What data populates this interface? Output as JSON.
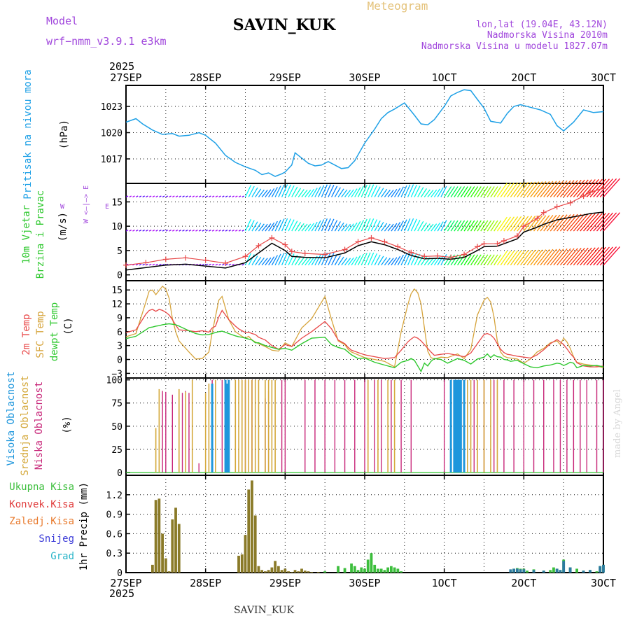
{
  "header": {
    "station": "SAVIN_KUK",
    "model_label": "Model",
    "model_name": "wrf−nmm_v3.9.1 e3km",
    "subtitle": "Meteogram",
    "coords": "lon,lat (19.04E, 43.12N)",
    "elevation": "Nadmorska Visina 2010m",
    "model_elevation": "Nadmorska Visina u modelu 1827.07m",
    "year": "2025",
    "footer_station": "SAVIN_KUK",
    "watermark": "made by Angel"
  },
  "colors": {
    "pressure": "#1ea0e6",
    "temp2m": "#e84848",
    "tsfc": "#d6a43c",
    "dewpt": "#2ec82e",
    "cloud_high": "#1e96dc",
    "cloud_mid": "#d4a83a",
    "cloud_low": "#c8287a",
    "precip_total": "#3cbe3c",
    "precip_conv": "#e03c3c",
    "precip_frz": "#e8782a",
    "precip_snow": "#3c3cd8",
    "precip_grad": "#28b4c8",
    "gust": "#e84848",
    "label_purple": "#a046dc",
    "label_green": "#2ec82e",
    "label_gold": "#d6a43c"
  },
  "chart_data": [
    {
      "type": "line",
      "name": "pressure",
      "title": "Pritisak na nivou mora",
      "ylabel": "(hPa)",
      "xlim": [
        0,
        144
      ],
      "ylim": [
        1014.2,
        1025.4
      ],
      "yticks": [
        1017,
        1020,
        1023
      ],
      "x_ticks": [
        0,
        24,
        48,
        72,
        96,
        120,
        144
      ],
      "x_tick_labels": [
        "27SEP",
        "28SEP",
        "29SEP",
        "30SEP",
        "1OCT",
        "2OCT",
        "3OCT"
      ],
      "x": [
        0,
        3,
        5,
        8,
        11,
        14,
        16,
        19,
        22,
        24,
        27,
        30,
        33,
        36,
        39,
        41,
        43,
        45,
        47,
        48,
        50,
        51,
        53,
        55,
        57,
        59,
        61,
        63,
        65,
        67,
        69,
        72,
        75,
        77,
        79,
        81,
        84,
        87,
        89,
        91,
        93,
        96,
        98,
        100,
        102,
        104,
        106,
        108,
        110,
        113,
        115,
        117,
        119,
        122,
        125,
        128,
        130,
        132,
        135,
        138,
        141,
        144
      ],
      "values": [
        1021.2,
        1021.6,
        1021.0,
        1020.3,
        1019.8,
        1019.9,
        1019.6,
        1019.7,
        1020.0,
        1019.7,
        1018.8,
        1017.4,
        1016.6,
        1016.1,
        1015.7,
        1015.2,
        1015.4,
        1015.0,
        1015.3,
        1015.5,
        1016.3,
        1017.7,
        1017.1,
        1016.5,
        1016.2,
        1016.3,
        1016.7,
        1016.3,
        1015.9,
        1016.0,
        1016.8,
        1018.8,
        1020.4,
        1021.6,
        1022.3,
        1022.7,
        1023.4,
        1022.0,
        1021.0,
        1020.9,
        1021.5,
        1023.0,
        1024.2,
        1024.6,
        1024.9,
        1024.8,
        1023.8,
        1022.8,
        1021.3,
        1021.1,
        1022.2,
        1023.0,
        1023.2,
        1022.9,
        1022.6,
        1022.1,
        1020.8,
        1020.2,
        1021.2,
        1022.6,
        1022.3,
        1022.4
      ]
    },
    {
      "type": "line",
      "name": "wind",
      "title_line1": "10m Vjetar",
      "title_line2": "Brzina i Pravac",
      "ylabel": "(m/s)",
      "compass_legend": "W <—|—> E",
      "compass_vertical": "N",
      "compass_vertical2": "S",
      "ylim": [
        -1.2,
        18.8
      ],
      "yticks": [
        0,
        5,
        10,
        15
      ],
      "x": [
        0,
        6,
        12,
        18,
        24,
        30,
        36,
        40,
        44,
        48,
        50,
        54,
        60,
        66,
        70,
        74,
        78,
        82,
        86,
        90,
        94,
        98,
        102,
        106,
        108,
        112,
        114,
        118,
        120,
        124,
        126,
        130,
        134,
        138,
        140,
        144
      ],
      "speed": [
        1.0,
        1.5,
        2.0,
        2.2,
        1.8,
        1.4,
        2.5,
        4.5,
        6.5,
        5.0,
        3.8,
        3.6,
        3.5,
        4.5,
        6.0,
        6.8,
        6.2,
        5.2,
        4.0,
        3.3,
        3.4,
        3.2,
        3.6,
        5.0,
        5.8,
        5.9,
        6.4,
        7.4,
        8.8,
        9.8,
        10.4,
        11.3,
        11.8,
        12.3,
        12.6,
        12.9
      ],
      "gust": [
        2.0,
        2.5,
        3.2,
        3.5,
        3.0,
        2.4,
        3.8,
        6.0,
        7.6,
        6.2,
        4.8,
        4.4,
        4.2,
        5.2,
        6.8,
        7.6,
        6.8,
        5.8,
        4.6,
        3.8,
        3.9,
        3.6,
        4.2,
        5.8,
        6.4,
        6.4,
        7.0,
        8.0,
        10.0,
        11.6,
        12.8,
        14.0,
        14.8,
        16.2,
        17.0,
        17.8
      ],
      "barb_rows_ms": [
        2,
        9,
        16
      ]
    },
    {
      "type": "line",
      "name": "temperature",
      "ylabel": "(C)",
      "label_2m": "2m Temp",
      "label_sfc": "SFC Temp",
      "label_dew": "dewpt Temp",
      "ylim": [
        -4,
        17
      ],
      "yticks": [
        -3,
        0,
        3,
        6,
        9,
        12,
        15
      ],
      "x": [
        0,
        3,
        6,
        7,
        8,
        9,
        10,
        11,
        12,
        13,
        14,
        15,
        16,
        19,
        21,
        23,
        25,
        26,
        27,
        28,
        29,
        31,
        33,
        34,
        35,
        36,
        37,
        38,
        39,
        40,
        42,
        44,
        46,
        48,
        50,
        53,
        56,
        60,
        62,
        64,
        66,
        67,
        68,
        70,
        72,
        75,
        78,
        81,
        83,
        85,
        86,
        87,
        88,
        89,
        90,
        91,
        92,
        93,
        95,
        97,
        100,
        102,
        104,
        106,
        108,
        109,
        110,
        111,
        112,
        113,
        114,
        115,
        116,
        118,
        120,
        122,
        124,
        126,
        128,
        130,
        131,
        132,
        133,
        134,
        135,
        136,
        138,
        140,
        142,
        144
      ],
      "t2m": [
        5.8,
        6.4,
        9.8,
        10.6,
        10.8,
        10.4,
        10.8,
        10.6,
        10.2,
        9.6,
        8.6,
        7.4,
        6.4,
        6.2,
        6.0,
        6.2,
        5.9,
        6.8,
        7.2,
        9.2,
        10.6,
        8.6,
        7.2,
        6.6,
        6.2,
        5.8,
        5.9,
        5.6,
        5.4,
        4.8,
        4.2,
        3.0,
        2.2,
        3.2,
        2.8,
        4.6,
        6.0,
        8.2,
        6.6,
        4.2,
        3.4,
        2.6,
        2.0,
        1.5,
        1.0,
        0.6,
        0.2,
        0.4,
        2.0,
        3.8,
        4.4,
        4.9,
        4.6,
        4.0,
        3.2,
        2.4,
        1.6,
        0.9,
        1.1,
        1.3,
        0.9,
        0.6,
        1.4,
        3.4,
        5.4,
        5.6,
        5.3,
        4.6,
        3.4,
        2.2,
        1.5,
        1.1,
        1.0,
        0.7,
        0.5,
        0.3,
        1.0,
        2.1,
        3.4,
        4.3,
        3.8,
        3.2,
        2.3,
        1.3,
        0.5,
        -0.7,
        -1.4,
        -1.6,
        -1.6,
        -1.4
      ],
      "tsfc": [
        4.9,
        5.6,
        12.4,
        14.8,
        15.0,
        14.0,
        14.9,
        15.8,
        15.2,
        13.2,
        8.8,
        6.0,
        4.0,
        1.6,
        0.1,
        0.2,
        1.6,
        5.8,
        9.3,
        12.8,
        13.6,
        8.6,
        6.0,
        5.5,
        5.0,
        4.6,
        5.0,
        4.2,
        3.8,
        3.4,
        2.8,
        2.0,
        1.8,
        3.6,
        2.8,
        6.8,
        8.8,
        13.6,
        8.6,
        4.0,
        3.2,
        2.2,
        1.6,
        1.0,
        0.4,
        0.0,
        -0.4,
        -1.6,
        6.0,
        11.8,
        14.2,
        15.2,
        14.4,
        12.0,
        6.8,
        1.8,
        0.4,
        0.1,
        0.5,
        0.4,
        1.2,
        0.2,
        2.2,
        9.6,
        12.8,
        13.4,
        12.4,
        9.2,
        4.0,
        1.6,
        0.7,
        0.4,
        0.3,
        0.1,
        -0.8,
        0.1,
        1.6,
        2.4,
        3.6,
        4.0,
        3.2,
        4.6,
        3.8,
        2.4,
        0.6,
        -0.6,
        -1.0,
        -1.2,
        -1.4,
        -1.8
      ],
      "dewpt": [
        4.5,
        5.0,
        6.4,
        6.9,
        7.0,
        7.2,
        7.3,
        7.5,
        7.6,
        7.7,
        7.6,
        7.5,
        7.2,
        6.2,
        5.6,
        5.3,
        5.4,
        5.6,
        5.8,
        6.0,
        6.1,
        5.6,
        5.1,
        4.9,
        4.8,
        4.6,
        4.4,
        4.2,
        3.6,
        3.6,
        3.0,
        2.6,
        2.2,
        2.4,
        2.0,
        3.4,
        4.6,
        4.8,
        3.2,
        2.6,
        2.2,
        1.6,
        1.0,
        0.2,
        0.3,
        -0.6,
        -1.2,
        -1.8,
        -0.6,
        -0.2,
        0.2,
        -0.2,
        -1.4,
        -2.6,
        -0.8,
        -1.4,
        -0.4,
        0.2,
        0.0,
        -0.8,
        0.2,
        -0.2,
        -1.0,
        0.1,
        0.5,
        1.2,
        0.4,
        1.0,
        0.6,
        0.5,
        0.0,
        -0.1,
        -0.4,
        -0.2,
        -0.9,
        -1.6,
        -1.8,
        -1.4,
        -1.2,
        -0.8,
        -0.9,
        -1.3,
        -1.0,
        -0.6,
        -0.8,
        -1.8,
        -1.3,
        -1.4,
        -1.3,
        -1.6
      ]
    },
    {
      "type": "bar",
      "name": "clouds",
      "label_high": "Visoka Oblacnost",
      "label_mid": "Srednja Oblacnost",
      "label_low": "Niska Oblacnost",
      "ylabel": "(%)",
      "ylim": [
        -3,
        102
      ],
      "yticks": [
        0,
        25,
        50,
        75,
        100
      ],
      "low_x": [
        11,
        12,
        14,
        16,
        17,
        18,
        19,
        22,
        26,
        29,
        30,
        33,
        35,
        36,
        37,
        38,
        39,
        42,
        43,
        47,
        48,
        54,
        57,
        60,
        63,
        66,
        69,
        72,
        75,
        77,
        80,
        83,
        86,
        96,
        99,
        102,
        105,
        108,
        111,
        114,
        117,
        120,
        123,
        126,
        129,
        131,
        133,
        135,
        137,
        139,
        142,
        144
      ],
      "low_v": [
        88,
        87,
        84,
        88,
        86,
        88,
        86,
        10,
        100,
        100,
        100,
        100,
        100,
        100,
        100,
        100,
        100,
        80,
        88,
        100,
        100,
        100,
        100,
        100,
        100,
        100,
        100,
        100,
        100,
        100,
        100,
        100,
        100,
        100,
        100,
        100,
        100,
        100,
        100,
        100,
        100,
        100,
        100,
        100,
        100,
        100,
        100,
        100,
        100,
        100,
        100,
        100
      ],
      "mid_x": [
        9,
        10,
        16,
        18,
        20,
        24,
        25,
        27,
        33,
        34,
        35,
        36,
        37,
        38,
        39,
        40,
        42,
        43,
        44,
        45,
        73,
        76,
        79,
        81,
        103,
        104,
        106,
        108,
        110,
        112
      ],
      "mid_v": [
        48,
        90,
        90,
        87,
        100,
        86,
        96,
        100,
        100,
        100,
        100,
        100,
        100,
        100,
        100,
        100,
        100,
        100,
        100,
        100,
        100,
        100,
        100,
        100,
        100,
        100,
        100,
        100,
        100,
        100
      ],
      "high_x": [
        26,
        30,
        30.5,
        31,
        98,
        99,
        99.5,
        100,
        100.5,
        101,
        102
      ],
      "high_v": [
        96,
        100,
        96,
        100,
        100,
        100,
        100,
        100,
        100,
        100,
        100
      ]
    },
    {
      "type": "bar",
      "name": "precip",
      "label_total": "Ukupna Kisa",
      "label_conv": "Konvek.Kisa",
      "label_frz": "Zaledj.Kisa",
      "label_snow": "Snijeg",
      "label_grad": "Grad",
      "ylabel": "1hr Precip (mm)",
      "ylim": [
        0,
        1.5
      ],
      "yticks": [
        0,
        0.3,
        0.6,
        0.9,
        1.2
      ],
      "x": [
        8,
        9,
        10,
        11,
        12,
        13,
        14,
        15,
        16,
        34,
        35,
        36,
        37,
        38,
        39,
        40,
        41,
        42,
        43,
        44,
        45,
        46,
        47,
        48,
        49,
        50,
        51,
        52,
        53,
        54,
        55,
        56,
        58,
        60,
        64,
        66,
        68,
        69,
        70,
        71,
        72,
        73,
        74,
        75,
        76,
        77,
        78,
        79,
        80,
        81,
        82,
        83,
        116,
        117,
        118,
        119,
        120,
        121,
        123,
        126,
        128,
        129,
        130,
        131,
        132,
        134,
        136,
        138,
        140,
        142,
        143,
        144
      ],
      "values": [
        0.12,
        1.12,
        1.14,
        0.6,
        0.22,
        0.02,
        0.82,
        1.0,
        0.75,
        0.26,
        0.28,
        0.58,
        1.28,
        1.42,
        0.88,
        0.1,
        0.04,
        0.02,
        0.04,
        0.08,
        0.18,
        0.1,
        0.04,
        0.06,
        0.02,
        0.01,
        0.04,
        0.02,
        0.06,
        0.03,
        0.02,
        0.01,
        0.01,
        0.02,
        0.1,
        0.07,
        0.14,
        0.1,
        0.04,
        0.08,
        0.06,
        0.2,
        0.3,
        0.12,
        0.06,
        0.06,
        0.04,
        0.08,
        0.1,
        0.08,
        0.06,
        0.02,
        0.03,
        0.06,
        0.07,
        0.06,
        0.06,
        0.03,
        0.05,
        0.03,
        0.04,
        0.08,
        0.06,
        0.04,
        0.2,
        0.08,
        0.06,
        0.03,
        0.04,
        0.02,
        0.1,
        0.12
      ],
      "snow_x": [
        116,
        117,
        118,
        119,
        120,
        123,
        126,
        130,
        131,
        132,
        134,
        138,
        140,
        143,
        144
      ],
      "snow_v": [
        0.05,
        0.06,
        0.06,
        0.05,
        0.05,
        0.04,
        0.03,
        0.06,
        0.04,
        0.18,
        0.08,
        0.03,
        0.04,
        0.1,
        0.12
      ]
    }
  ]
}
